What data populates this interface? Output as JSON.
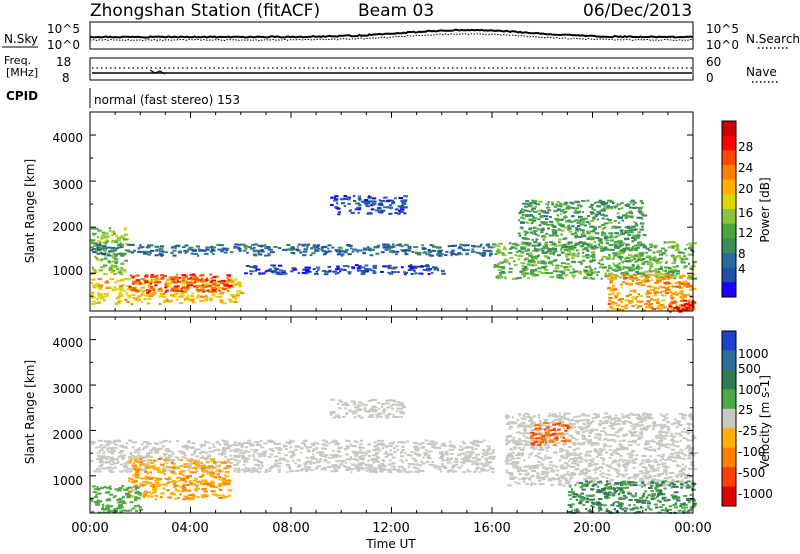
{
  "header": {
    "title": "Zhongshan Station (fitACF)",
    "beam": "Beam 03",
    "date": "06/Dec/2013"
  },
  "noise_panel": {
    "left_label": "N.Sky",
    "left_top_tick": "10^5",
    "left_bottom_tick": "10^0",
    "right_top_tick": "10^5",
    "right_bottom_tick": "10^0",
    "right_label": "N.Search"
  },
  "freq_panel": {
    "label_line1": "Freq.",
    "label_line2": "[MHz]",
    "left_top_tick": "18",
    "left_bottom_tick": "8",
    "right_top_tick": "60",
    "right_bottom_tick": "0",
    "right_label": "Nave"
  },
  "cpid": {
    "label": "CPID",
    "text": "normal (fast stereo) 153"
  },
  "power_panel": {
    "ylabel": "Slant Range [km]",
    "yticks": [
      "1000",
      "2000",
      "3000",
      "4000"
    ],
    "cbar_label": "Power [dB]",
    "cbar_ticks": [
      "4",
      "8",
      "12",
      "16",
      "20",
      "24",
      "28"
    ],
    "cbar_colors": [
      "#1f00ff",
      "#1f4fa8",
      "#2a6aa0",
      "#3a8c5a",
      "#46a83c",
      "#8cc43a",
      "#d8d800",
      "#ffb000",
      "#ff8000",
      "#ff4a00",
      "#ff0000",
      "#c80000"
    ]
  },
  "velocity_panel": {
    "ylabel": "Slant Range [km]",
    "yticks": [
      "1000",
      "2000",
      "3000",
      "4000"
    ],
    "cbar_label": "Velocity [m s-1]",
    "cbar_ticks": [
      "1000",
      "500",
      "100",
      "25",
      "-25",
      "-100",
      "-500",
      "-1000"
    ],
    "cbar_colors": [
      "#2040d0",
      "#2e6fa0",
      "#2f7a55",
      "#4ca845",
      "#c8c8c0",
      "#ffb000",
      "#ff8000",
      "#ff4000",
      "#e00000"
    ]
  },
  "time_axis": {
    "xlabel": "Time UT",
    "xticks": [
      "00:00",
      "04:00",
      "08:00",
      "12:00",
      "16:00",
      "20:00",
      "00:00"
    ]
  },
  "chart_data": {
    "type": "heatmap",
    "title": "Zhongshan Station (fitACF) Beam 03 06/Dec/2013",
    "xlabel": "Time UT",
    "ylabel": "Slant Range [km]",
    "x_range_hours": [
      0,
      24
    ],
    "y_range_km": [
      180,
      4500
    ],
    "power_regions": [
      {
        "t": [
          0.0,
          1.4
        ],
        "r": [
          1000,
          2000
        ],
        "db": 15
      },
      {
        "t": [
          0.0,
          6.0
        ],
        "r": [
          350,
          900
        ],
        "db": 20
      },
      {
        "t": [
          1.5,
          5.5
        ],
        "r": [
          600,
          1000
        ],
        "db": 26
      },
      {
        "t": [
          0.0,
          16.0
        ],
        "r": [
          1400,
          1650
        ],
        "db": 8
      },
      {
        "t": [
          6.0,
          14.0
        ],
        "r": [
          1000,
          1200
        ],
        "db": 6
      },
      {
        "t": [
          9.5,
          12.5
        ],
        "r": [
          2300,
          2700
        ],
        "db": 6
      },
      {
        "t": [
          16.0,
          24.0
        ],
        "r": [
          900,
          1700
        ],
        "db": 14
      },
      {
        "t": [
          17.0,
          22.0
        ],
        "r": [
          1500,
          2600
        ],
        "db": 12
      },
      {
        "t": [
          20.5,
          24.0
        ],
        "r": [
          200,
          1000
        ],
        "db": 22
      },
      {
        "t": [
          23.0,
          24.0
        ],
        "r": [
          180,
          450
        ],
        "db": 28
      }
    ],
    "velocity_regions": [
      {
        "t": [
          0.0,
          16.0
        ],
        "r": [
          1100,
          1800
        ],
        "v": 0
      },
      {
        "t": [
          1.5,
          5.5
        ],
        "r": [
          500,
          1400
        ],
        "v": -150
      },
      {
        "t": [
          0.0,
          2.0
        ],
        "r": [
          200,
          800
        ],
        "v": 60
      },
      {
        "t": [
          9.5,
          12.5
        ],
        "r": [
          2300,
          2700
        ],
        "v": 0
      },
      {
        "t": [
          16.5,
          24.0
        ],
        "r": [
          800,
          2400
        ],
        "v": 0
      },
      {
        "t": [
          17.5,
          19.0
        ],
        "r": [
          1700,
          2200
        ],
        "v": -300
      },
      {
        "t": [
          19.0,
          24.0
        ],
        "r": [
          200,
          900
        ],
        "v": 150
      }
    ]
  }
}
